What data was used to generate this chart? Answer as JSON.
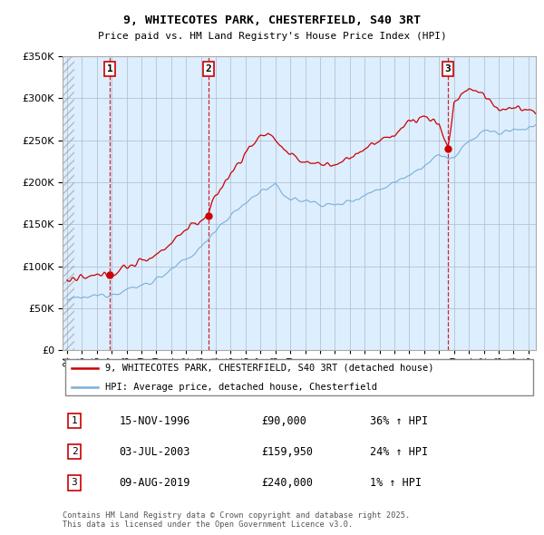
{
  "title": "9, WHITECOTES PARK, CHESTERFIELD, S40 3RT",
  "subtitle": "Price paid vs. HM Land Registry's House Price Index (HPI)",
  "sales": [
    {
      "num": 1,
      "date_str": "15-NOV-1996",
      "year": 1996.88,
      "price": 90000,
      "pct": "36%",
      "dir": "↑"
    },
    {
      "num": 2,
      "date_str": "03-JUL-2003",
      "year": 2003.5,
      "price": 159950,
      "pct": "24%",
      "dir": "↑"
    },
    {
      "num": 3,
      "date_str": "09-AUG-2019",
      "year": 2019.6,
      "price": 240000,
      "pct": "1%",
      "dir": "↑"
    }
  ],
  "legend_house": "9, WHITECOTES PARK, CHESTERFIELD, S40 3RT (detached house)",
  "legend_hpi": "HPI: Average price, detached house, Chesterfield",
  "footer": "Contains HM Land Registry data © Crown copyright and database right 2025.\nThis data is licensed under the Open Government Licence v3.0.",
  "ylim": [
    0,
    350000
  ],
  "xlim_start": 1993.7,
  "xlim_end": 2025.5,
  "house_color": "#cc0000",
  "hpi_color": "#7bafd4",
  "sale_vline_color": "#cc0000",
  "chart_bg_color": "#ddeeff",
  "background_color": "#ffffff",
  "grid_color": "#aabbcc",
  "hatch_color": "#aaaaaa"
}
